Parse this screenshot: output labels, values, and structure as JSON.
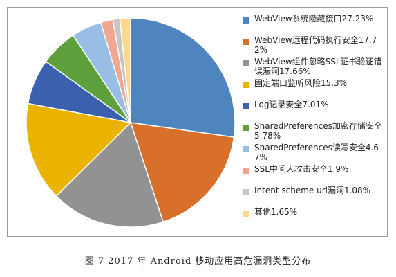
{
  "caption": "图 7   2017 年 Android 移动应用高危漏洞类型分布",
  "chart_data": {
    "type": "pie",
    "legend_position": "right",
    "slices": [
      {
        "label": "WebView系统隐藏接口27.23%",
        "value": 27.23,
        "color": "#4e85bf"
      },
      {
        "label": "WebView远程代码执行安全17.72%",
        "value": 17.72,
        "color": "#d86f2a"
      },
      {
        "label": "WebView组件忽略SSL证书验证错误漏洞17.66%",
        "value": 17.66,
        "color": "#929292"
      },
      {
        "label": "固定端口监听风险15.3%",
        "value": 15.3,
        "color": "#e9b300"
      },
      {
        "label": "Log记录安全7.01%",
        "value": 7.01,
        "color": "#3b60ad"
      },
      {
        "label": "SharedPreferences加密存储安全5.78%",
        "value": 5.78,
        "color": "#5e9f3e"
      },
      {
        "label": "SharedPreferences读写安全4.67%",
        "value": 4.67,
        "color": "#99bee6"
      },
      {
        "label": "SSL中间人攻击安全1.9%",
        "value": 1.9,
        "color": "#f0a68f"
      },
      {
        "label": "Intent scheme url漏洞1.08%",
        "value": 1.08,
        "color": "#c6c6c6"
      },
      {
        "label": "其他1.65%",
        "value": 1.65,
        "color": "#fcd78e"
      }
    ]
  }
}
